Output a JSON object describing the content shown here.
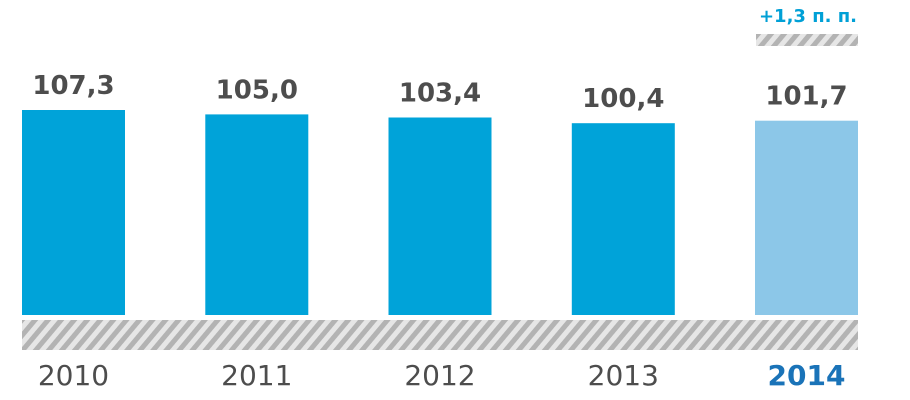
{
  "chart_data": {
    "type": "bar",
    "categories": [
      "2010",
      "2011",
      "2012",
      "2013",
      "2014"
    ],
    "values": [
      107.3,
      105.0,
      103.4,
      100.4,
      101.7
    ],
    "value_labels": [
      "107,3",
      "105,0",
      "103,4",
      "100,4",
      "101,7"
    ],
    "highlight_index": 4,
    "annotation": "+1,3 п. п.",
    "colors": {
      "bar": "#00a3d9",
      "bar_highlight": "#8cc7e8",
      "year_highlight": "#1a73b8",
      "annotation": "#00a0d6",
      "hatch": "#b3b3b3"
    },
    "grid": false
  }
}
